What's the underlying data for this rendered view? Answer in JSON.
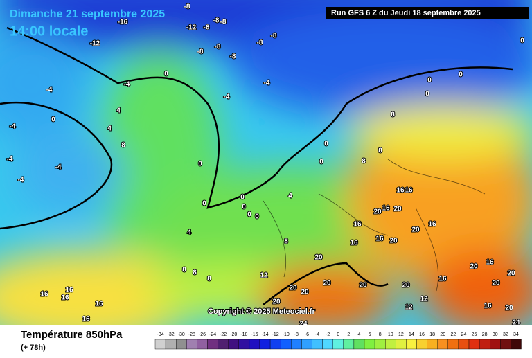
{
  "header": {
    "title": "Dimanche 21 septembre 2025",
    "subtitle": "14:00 locale",
    "run": "Run GFS 6 Z du Jeudi 18 septembre 2025",
    "title_color": "#39c6ff"
  },
  "copyright": "Copyright © 2025 Meteociel.fr",
  "footer": {
    "title": "Température 850hPa",
    "lead": "(+ 78h)"
  },
  "legend": {
    "values": [
      -34,
      -32,
      -30,
      -28,
      -26,
      -24,
      -22,
      -20,
      -18,
      -16,
      -14,
      -12,
      -10,
      -8,
      -6,
      -4,
      -2,
      0,
      2,
      4,
      6,
      8,
      10,
      12,
      14,
      16,
      18,
      20,
      22,
      24,
      26,
      28,
      30,
      32,
      34
    ],
    "colors": [
      "#d0d0d0",
      "#b0b0b0",
      "#909090",
      "#a080b0",
      "#9060a0",
      "#703080",
      "#502070",
      "#401080",
      "#3010a0",
      "#2010c0",
      "#1020e0",
      "#1040f0",
      "#1060ff",
      "#2080ff",
      "#30a0ff",
      "#40c0ff",
      "#50d8ff",
      "#60f0e0",
      "#60f0a0",
      "#60e060",
      "#80f040",
      "#a0f040",
      "#c0f040",
      "#e0f040",
      "#f8f040",
      "#f8d030",
      "#f8b020",
      "#f89020",
      "#f07010",
      "#e85010",
      "#e03010",
      "#c02010",
      "#a01010",
      "#701010",
      "#400808"
    ]
  },
  "contour_labels": [
    -8,
    -16,
    -12,
    -8,
    -8,
    -8,
    -8,
    -12,
    -8,
    -8,
    -8,
    -8,
    0,
    -4,
    -4,
    -4,
    -4,
    4,
    0,
    4,
    -4,
    -4,
    -4,
    -4,
    8,
    0,
    0,
    0,
    8,
    8,
    0,
    0,
    0,
    0,
    0,
    4,
    4,
    8,
    16,
    16,
    20,
    20,
    16,
    16,
    16,
    16,
    20,
    20,
    16,
    8,
    8,
    8,
    12,
    20,
    20,
    20,
    20,
    20,
    20,
    20,
    20,
    16,
    20,
    20,
    16,
    12,
    12,
    16,
    20,
    24,
    24,
    16,
    16,
    16,
    16,
    16,
    0,
    0,
    0,
    0,
    8
  ]
}
